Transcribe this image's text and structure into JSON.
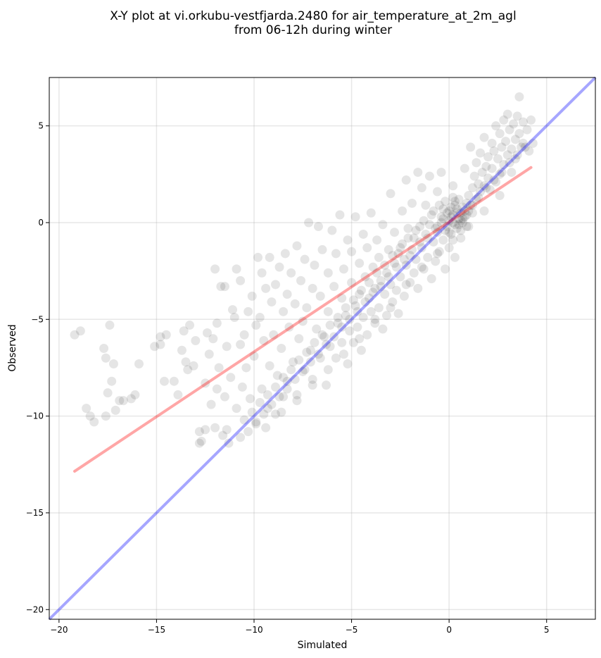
{
  "chart_data": {
    "type": "scatter",
    "title": "X-Y plot at vi.orkubu-vestfjarda.2480 for air_temperature_at_2m_agl",
    "subtitle": "from 06-12h during winter",
    "xlabel": "Simulated",
    "ylabel": "Observed",
    "xlim": [
      -20.5,
      7.5
    ],
    "ylim": [
      -20.5,
      7.5
    ],
    "xticks": [
      -20,
      -15,
      -10,
      -5,
      0,
      5
    ],
    "yticks": [
      -20,
      -15,
      -10,
      -5,
      0,
      5
    ],
    "xtick_labels": [
      "−20",
      "−15",
      "−10",
      "−5",
      "0",
      "5"
    ],
    "ytick_labels": [
      "−20",
      "−15",
      "−10",
      "−5",
      "0",
      "5"
    ],
    "grid": true,
    "point_color": "#000000",
    "point_alpha": 0.1,
    "points": [
      [
        -19.2,
        -5.8
      ],
      [
        -18.9,
        -5.6
      ],
      [
        -18.6,
        -9.6
      ],
      [
        -18.4,
        -10.0
      ],
      [
        -18.2,
        -10.3
      ],
      [
        -17.7,
        -6.5
      ],
      [
        -17.6,
        -10.0
      ],
      [
        -17.4,
        -5.3
      ],
      [
        -17.5,
        -8.8
      ],
      [
        -17.3,
        -8.2
      ],
      [
        -17.2,
        -7.3
      ],
      [
        -17.1,
        -9.7
      ],
      [
        -17.6,
        -7.0
      ],
      [
        -16.9,
        -9.2
      ],
      [
        -16.7,
        -9.2
      ],
      [
        -16.3,
        -9.1
      ],
      [
        -16.1,
        -8.9
      ],
      [
        -15.9,
        -7.3
      ],
      [
        -15.1,
        -6.4
      ],
      [
        -14.8,
        -6.3
      ],
      [
        -14.8,
        -5.9
      ],
      [
        -14.5,
        -5.8
      ],
      [
        -14.6,
        -8.2
      ],
      [
        -14.1,
        -8.2
      ],
      [
        -13.9,
        -8.9
      ],
      [
        -13.7,
        -6.6
      ],
      [
        -13.6,
        -5.6
      ],
      [
        -13.5,
        -7.2
      ],
      [
        -13.4,
        -7.6
      ],
      [
        -13.3,
        -5.3
      ],
      [
        -13.1,
        -7.4
      ],
      [
        -13.0,
        -6.1
      ],
      [
        -12.8,
        -10.8
      ],
      [
        -12.7,
        -11.3
      ],
      [
        -12.5,
        -10.7
      ],
      [
        -12.5,
        -8.3
      ],
      [
        -12.4,
        -5.7
      ],
      [
        -12.3,
        -6.8
      ],
      [
        -12.2,
        -9.4
      ],
      [
        -12.1,
        -6.0
      ],
      [
        -12.0,
        -2.4
      ],
      [
        -11.9,
        -8.6
      ],
      [
        -11.9,
        -5.2
      ],
      [
        -11.8,
        -7.5
      ],
      [
        -11.7,
        -3.3
      ],
      [
        -11.5,
        -3.3
      ],
      [
        -11.5,
        -9.0
      ],
      [
        -11.4,
        -10.7
      ],
      [
        -11.4,
        -6.4
      ],
      [
        -11.3,
        -11.4
      ],
      [
        -11.2,
        -8.0
      ],
      [
        -11.1,
        -4.5
      ],
      [
        -11.0,
        -4.9
      ],
      [
        -10.9,
        -9.6
      ],
      [
        -10.9,
        -2.4
      ],
      [
        -10.7,
        -3.0
      ],
      [
        -10.7,
        -6.3
      ],
      [
        -10.6,
        -8.5
      ],
      [
        -10.5,
        -5.8
      ],
      [
        -10.4,
        -7.5
      ],
      [
        -10.3,
        -4.6
      ],
      [
        -10.2,
        -9.1
      ],
      [
        -10.1,
        -3.8
      ],
      [
        -10.0,
        -6.9
      ],
      [
        -9.9,
        -5.3
      ],
      [
        -9.9,
        -10.4
      ],
      [
        -9.8,
        -1.8
      ],
      [
        -9.7,
        -4.9
      ],
      [
        -9.6,
        -8.6
      ],
      [
        -9.6,
        -2.6
      ],
      [
        -9.5,
        -6.1
      ],
      [
        -9.4,
        -3.4
      ],
      [
        -9.3,
        -9.6
      ],
      [
        -9.2,
        -7.4
      ],
      [
        -9.2,
        -1.8
      ],
      [
        -9.1,
        -4.1
      ],
      [
        -9.0,
        -5.8
      ],
      [
        -8.9,
        -9.9
      ],
      [
        -8.9,
        -3.2
      ],
      [
        -8.8,
        -7.9
      ],
      [
        -8.7,
        -2.3
      ],
      [
        -8.6,
        -6.5
      ],
      [
        -8.5,
        -4.6
      ],
      [
        -8.5,
        -9.0
      ],
      [
        -8.4,
        -1.6
      ],
      [
        -8.3,
        -8.2
      ],
      [
        -8.3,
        -3.7
      ],
      [
        -8.2,
        -5.4
      ],
      [
        -8.1,
        -2.6
      ],
      [
        -8.0,
        -7.2
      ],
      [
        -7.9,
        -4.2
      ],
      [
        -7.8,
        -8.9
      ],
      [
        -7.8,
        -1.2
      ],
      [
        -7.7,
        -6.0
      ],
      [
        -7.6,
        -3.0
      ],
      [
        -7.5,
        -5.1
      ],
      [
        -7.4,
        -7.6
      ],
      [
        -7.4,
        -1.9
      ],
      [
        -7.3,
        -4.4
      ],
      [
        -7.2,
        -0.0
      ],
      [
        -7.1,
        -6.6
      ],
      [
        -7.0,
        -3.4
      ],
      [
        -7.0,
        -8.1
      ],
      [
        -6.9,
        -2.2
      ],
      [
        -6.8,
        -5.5
      ],
      [
        -6.7,
        -0.2
      ],
      [
        -6.6,
        -7.0
      ],
      [
        -6.6,
        -3.8
      ],
      [
        -6.5,
        -1.4
      ],
      [
        -6.4,
        -5.9
      ],
      [
        -6.3,
        -8.4
      ],
      [
        -6.2,
        -2.6
      ],
      [
        -6.2,
        -4.6
      ],
      [
        -6.1,
        -6.4
      ],
      [
        -6.0,
        -0.4
      ],
      [
        -5.9,
        -3.3
      ],
      [
        -5.8,
        -7.0
      ],
      [
        -5.8,
        -1.6
      ],
      [
        -5.7,
        -5.2
      ],
      [
        -5.6,
        0.4
      ],
      [
        -5.5,
        -3.9
      ],
      [
        -5.5,
        -6.2
      ],
      [
        -5.4,
        -2.4
      ],
      [
        -5.3,
        -4.8
      ],
      [
        -5.2,
        -0.9
      ],
      [
        -5.2,
        -7.3
      ],
      [
        -5.1,
        -5.6
      ],
      [
        -5.0,
        -3.1
      ],
      [
        -5.0,
        -1.5
      ],
      [
        -4.9,
        -6.2
      ],
      [
        -4.8,
        -4.3
      ],
      [
        -4.8,
        0.3
      ],
      [
        -4.7,
        -5.4
      ],
      [
        -4.6,
        -2.1
      ],
      [
        -4.6,
        -3.7
      ],
      [
        -4.5,
        -6.6
      ],
      [
        -4.4,
        -0.6
      ],
      [
        -4.4,
        -4.9
      ],
      [
        -4.3,
        -2.8
      ],
      [
        -4.2,
        -5.8
      ],
      [
        -4.2,
        -1.3
      ],
      [
        -4.1,
        -3.9
      ],
      [
        -4.0,
        -4.6
      ],
      [
        -4.0,
        0.5
      ],
      [
        -3.9,
        -2.3
      ],
      [
        -3.8,
        -5.2
      ],
      [
        -3.8,
        -3.4
      ],
      [
        -3.7,
        -0.9
      ],
      [
        -3.6,
        -4.4
      ],
      [
        -3.6,
        -1.8
      ],
      [
        -3.5,
        -3.0
      ],
      [
        -3.4,
        -5.5
      ],
      [
        -3.4,
        -0.1
      ],
      [
        -3.3,
        -3.7
      ],
      [
        -3.2,
        -2.6
      ],
      [
        -3.2,
        -4.8
      ],
      [
        -3.1,
        -1.4
      ],
      [
        -3.0,
        -3.2
      ],
      [
        -3.0,
        1.5
      ],
      [
        -2.9,
        -4.1
      ],
      [
        -2.8,
        -2.1
      ],
      [
        -2.8,
        -0.5
      ],
      [
        -2.7,
        -3.5
      ],
      [
        -2.6,
        -1.6
      ],
      [
        -2.6,
        -4.7
      ],
      [
        -2.5,
        -2.8
      ],
      [
        -2.4,
        0.6
      ],
      [
        -2.4,
        -1.1
      ],
      [
        -2.3,
        -3.8
      ],
      [
        -2.2,
        -2.2
      ],
      [
        -2.2,
        2.2
      ],
      [
        -2.1,
        -0.3
      ],
      [
        -2.0,
        -3.1
      ],
      [
        -2.0,
        -1.7
      ],
      [
        -1.9,
        1.0
      ],
      [
        -1.8,
        -2.6
      ],
      [
        -1.8,
        -0.8
      ],
      [
        -1.7,
        -1.9
      ],
      [
        -1.6,
        2.6
      ],
      [
        -1.6,
        -3.4
      ],
      [
        -1.5,
        -0.2
      ],
      [
        -1.4,
        -1.3
      ],
      [
        -1.4,
        1.8
      ],
      [
        -1.3,
        -2.4
      ],
      [
        -1.2,
        -0.6
      ],
      [
        -1.2,
        0.9
      ],
      [
        -1.1,
        -1.8
      ],
      [
        -1.0,
        2.4
      ],
      [
        -1.0,
        -0.1
      ],
      [
        -0.9,
        -2.9
      ],
      [
        -0.8,
        -1.0
      ],
      [
        -0.8,
        0.6
      ],
      [
        -0.7,
        -2.0
      ],
      [
        -0.6,
        1.6
      ],
      [
        -0.6,
        -0.5
      ],
      [
        -0.5,
        -1.5
      ],
      [
        -0.4,
        0.3
      ],
      [
        -0.4,
        2.6
      ],
      [
        -0.3,
        -0.9
      ],
      [
        -0.2,
        -2.4
      ],
      [
        -0.2,
        1.1
      ],
      [
        -0.1,
        -0.2
      ],
      [
        0.0,
        -1.3
      ],
      [
        0.0,
        0.6
      ],
      [
        0.1,
        -0.6
      ],
      [
        0.2,
        1.9
      ],
      [
        0.2,
        0.0
      ],
      [
        0.3,
        -1.8
      ],
      [
        0.4,
        0.5
      ],
      [
        0.4,
        -0.3
      ],
      [
        0.5,
        1.2
      ],
      [
        0.6,
        0.1
      ],
      [
        0.6,
        -0.8
      ],
      [
        0.7,
        0.8
      ],
      [
        0.8,
        2.8
      ],
      [
        0.8,
        0.3
      ],
      [
        0.9,
        -0.2
      ],
      [
        1.0,
        1.4
      ],
      [
        1.0,
        0.6
      ],
      [
        1.1,
        3.9
      ],
      [
        1.2,
        1.8
      ],
      [
        1.2,
        0.9
      ],
      [
        1.3,
        2.4
      ],
      [
        1.4,
        1.2
      ],
      [
        1.4,
        3.1
      ],
      [
        1.5,
        2.0
      ],
      [
        1.6,
        1.6
      ],
      [
        1.6,
        3.6
      ],
      [
        1.7,
        2.6
      ],
      [
        1.8,
        1.9
      ],
      [
        1.8,
        4.4
      ],
      [
        1.9,
        2.9
      ],
      [
        2.0,
        2.3
      ],
      [
        2.0,
        3.4
      ],
      [
        2.1,
        1.7
      ],
      [
        2.2,
        4.1
      ],
      [
        2.2,
        2.8
      ],
      [
        2.3,
        3.7
      ],
      [
        2.4,
        2.1
      ],
      [
        2.4,
        5.0
      ],
      [
        2.5,
        3.3
      ],
      [
        2.6,
        4.6
      ],
      [
        2.6,
        2.5
      ],
      [
        2.7,
        3.9
      ],
      [
        2.8,
        5.3
      ],
      [
        2.8,
        3.0
      ],
      [
        2.9,
        4.2
      ],
      [
        3.0,
        3.5
      ],
      [
        3.0,
        5.6
      ],
      [
        3.1,
        4.8
      ],
      [
        3.2,
        3.8
      ],
      [
        3.2,
        2.6
      ],
      [
        3.3,
        5.1
      ],
      [
        3.4,
        4.3
      ],
      [
        3.4,
        3.3
      ],
      [
        3.5,
        5.5
      ],
      [
        3.6,
        4.6
      ],
      [
        3.6,
        6.5
      ],
      [
        3.7,
        3.9
      ],
      [
        3.8,
        5.2
      ],
      [
        3.8,
        4.1
      ],
      [
        4.0,
        4.8
      ],
      [
        4.1,
        3.7
      ],
      [
        4.2,
        5.3
      ],
      [
        4.3,
        4.1
      ],
      [
        -0.3,
        0.2
      ],
      [
        0.1,
        0.8
      ],
      [
        0.5,
        -0.1
      ],
      [
        -0.7,
        -0.3
      ],
      [
        0.9,
        0.4
      ],
      [
        -1.1,
        -0.8
      ],
      [
        -1.5,
        -1.0
      ],
      [
        -1.9,
        -1.4
      ],
      [
        -2.3,
        -1.9
      ],
      [
        -2.7,
        -2.3
      ],
      [
        -3.1,
        -2.8
      ],
      [
        -3.5,
        -3.3
      ],
      [
        -3.9,
        -3.6
      ],
      [
        -4.3,
        -4.1
      ],
      [
        -4.7,
        -4.6
      ],
      [
        -5.1,
        -5.0
      ],
      [
        -5.5,
        -5.4
      ],
      [
        -5.9,
        -5.9
      ],
      [
        -6.3,
        -6.3
      ],
      [
        -6.7,
        -6.8
      ],
      [
        -7.1,
        -7.2
      ],
      [
        -7.5,
        -7.7
      ],
      [
        -7.9,
        -8.1
      ],
      [
        -8.3,
        -8.6
      ],
      [
        -8.7,
        -9.0
      ],
      [
        -9.1,
        -9.4
      ],
      [
        -9.5,
        -9.9
      ],
      [
        -9.9,
        -10.3
      ],
      [
        -10.3,
        -10.8
      ],
      [
        -10.7,
        -11.1
      ],
      [
        0.3,
        1.1
      ],
      [
        0.7,
        0.2
      ],
      [
        1.1,
        0.9
      ],
      [
        1.5,
        1.3
      ],
      [
        1.9,
        1.8
      ],
      [
        2.3,
        2.2
      ],
      [
        2.7,
        2.6
      ],
      [
        3.1,
        3.1
      ],
      [
        3.5,
        3.5
      ],
      [
        3.9,
        3.9
      ],
      [
        -0.5,
        0.9
      ],
      [
        -0.9,
        0.4
      ],
      [
        -1.3,
        0.1
      ],
      [
        -1.7,
        -0.4
      ],
      [
        -2.1,
        -0.8
      ],
      [
        -2.5,
        -1.3
      ],
      [
        -2.9,
        -1.7
      ],
      [
        -3.3,
        -2.2
      ],
      [
        -3.7,
        -2.6
      ],
      [
        -4.1,
        -3.1
      ],
      [
        -4.5,
        -3.5
      ],
      [
        -4.9,
        -4.0
      ],
      [
        -5.3,
        -4.4
      ],
      [
        -5.7,
        -4.9
      ],
      [
        -6.1,
        -5.3
      ],
      [
        -6.5,
        -5.8
      ],
      [
        -6.9,
        -6.2
      ],
      [
        -7.3,
        -6.7
      ],
      [
        -7.7,
        -7.1
      ],
      [
        -8.1,
        -7.6
      ],
      [
        -8.5,
        -8.0
      ],
      [
        -8.9,
        -8.5
      ],
      [
        -9.3,
        -8.9
      ],
      [
        -9.7,
        -9.3
      ],
      [
        -10.1,
        -9.8
      ],
      [
        -10.5,
        -10.2
      ],
      [
        -3.0,
        -4.4
      ],
      [
        -3.8,
        -5.0
      ],
      [
        -4.6,
        -6.0
      ],
      [
        -5.4,
        -6.8
      ],
      [
        -2.2,
        -3.2
      ],
      [
        -1.4,
        -2.3
      ],
      [
        -0.6,
        -1.6
      ],
      [
        0.2,
        -0.9
      ],
      [
        1.0,
        -0.2
      ],
      [
        1.8,
        0.6
      ],
      [
        2.6,
        1.4
      ],
      [
        -6.2,
        -7.6
      ],
      [
        -7.0,
        -8.4
      ],
      [
        -7.8,
        -9.2
      ],
      [
        -8.6,
        -9.8
      ],
      [
        -9.4,
        -10.6
      ],
      [
        -11.6,
        -11.0
      ],
      [
        -12.0,
        -10.6
      ],
      [
        -12.8,
        -11.4
      ],
      [
        -0.1,
        0.5
      ],
      [
        0.0,
        0.1
      ],
      [
        0.2,
        0.4
      ],
      [
        0.3,
        -0.1
      ],
      [
        0.4,
        0.7
      ],
      [
        -0.2,
        -0.4
      ],
      [
        0.6,
        0.5
      ],
      [
        0.1,
        0.3
      ],
      [
        -0.4,
        0.0
      ],
      [
        0.5,
        0.2
      ],
      [
        0.3,
        0.9
      ],
      [
        0.7,
        0.0
      ],
      [
        0.8,
        0.6
      ],
      [
        -0.6,
        -0.2
      ],
      [
        0.0,
        -0.5
      ],
      [
        0.2,
        1.3
      ],
      [
        1.2,
        0.5
      ],
      [
        0.9,
        1.0
      ],
      [
        -0.3,
        0.7
      ],
      [
        0.6,
        -0.4
      ]
    ],
    "identity_line": {
      "color": "#0000ff",
      "alpha": 0.35,
      "x": [
        -20.5,
        7.5
      ],
      "y": [
        -20.5,
        7.5
      ]
    },
    "fit_line": {
      "color": "#ff0000",
      "alpha": 0.35,
      "x": [
        -19.2,
        4.2
      ],
      "y": [
        -12.85,
        2.85
      ]
    }
  }
}
